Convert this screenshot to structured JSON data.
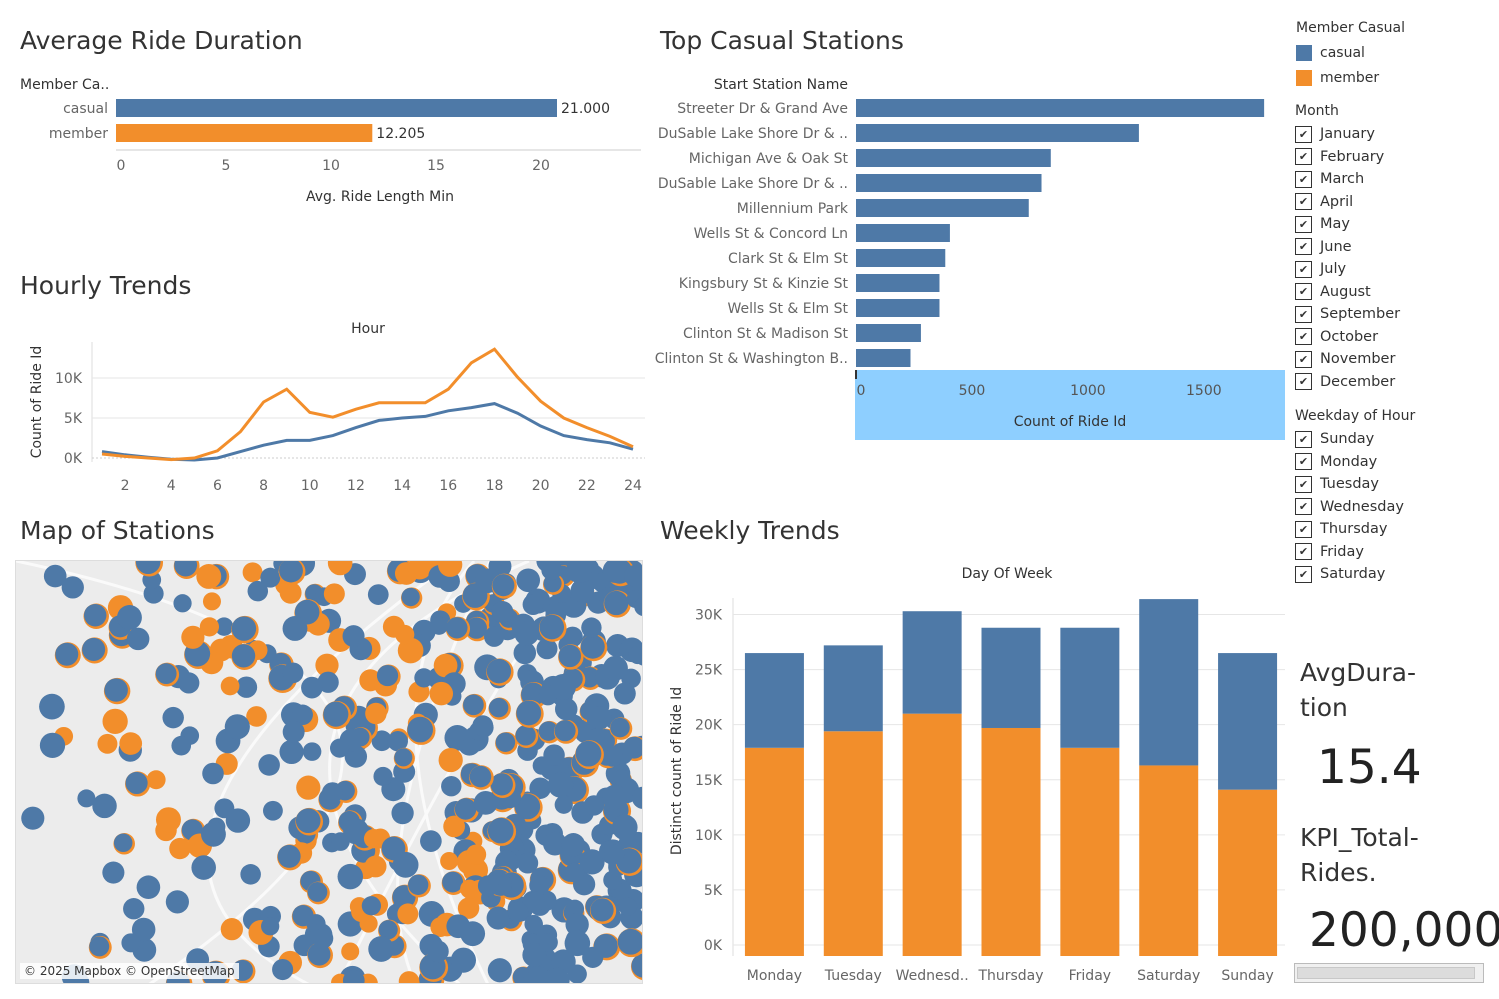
{
  "colors": {
    "casual": "#4e79a7",
    "member": "#f28e2b",
    "highlight": "#8ecfff",
    "grid": "#e6e6e6"
  },
  "legend": {
    "title": "Member Casual",
    "items": [
      {
        "label": "casual",
        "color": "#4e79a7"
      },
      {
        "label": "member",
        "color": "#f28e2b"
      }
    ]
  },
  "month_filter": {
    "title": "Month",
    "items": [
      "January",
      "February",
      "March",
      "April",
      "May",
      "June",
      "July",
      "August",
      "September",
      "October",
      "November",
      "December"
    ]
  },
  "weekday_filter": {
    "title": "Weekday of Hour",
    "items": [
      "Sunday",
      "Monday",
      "Tuesday",
      "Wednesday",
      "Thursday",
      "Friday",
      "Saturday"
    ]
  },
  "check_glyph": "✔",
  "kpi": {
    "avg_label_1": "AvgDura-",
    "avg_label_2": "tion",
    "avg_value": "15.4",
    "total_label_1": "KPI_Total-",
    "total_label_2": "Rides.",
    "total_value": "200,000"
  },
  "map": {
    "title": "Map of Stations",
    "credit": "© 2025 Mapbox © OpenStreetMap"
  },
  "chart_data": [
    {
      "id": "avg_duration",
      "type": "bar",
      "title": "Average Ride Duration",
      "row_header": "Member Ca..",
      "categories": [
        "casual",
        "member"
      ],
      "values": [
        21.0,
        12.205
      ],
      "value_labels": [
        "21.000",
        "12.205"
      ],
      "xlabel": "Avg. Ride Length Min",
      "xlim": [
        0,
        25
      ],
      "xticks": [
        "0",
        "5",
        "10",
        "15",
        "20"
      ]
    },
    {
      "id": "top_stations",
      "type": "bar",
      "title": "Top Casual Stations",
      "row_header": "Start Station Name",
      "categories": [
        "Streeter Dr & Grand Ave",
        "DuSable Lake Shore Dr & ..",
        "Michigan Ave & Oak St",
        "DuSable Lake Shore Dr & ..",
        "Millennium Park",
        "Wells St & Concord Ln",
        "Clark St & Elm St",
        "Kingsbury St & Kinzie St",
        "Wells St & Elm St",
        "Clinton St & Madison St",
        "Clinton St & Washington B.."
      ],
      "values": [
        1760,
        1220,
        840,
        800,
        745,
        405,
        385,
        360,
        360,
        280,
        235
      ],
      "xlabel": "Count of Ride Id",
      "xlim": [
        0,
        1850
      ],
      "xticks": [
        "0",
        "500",
        "1000",
        "1500"
      ]
    },
    {
      "id": "hourly",
      "type": "line",
      "title": "Hourly Trends",
      "xlabel": "Hour",
      "ylabel": "Count of Ride Id",
      "x": [
        1,
        2,
        3,
        4,
        5,
        6,
        7,
        8,
        9,
        10,
        11,
        12,
        13,
        14,
        15,
        16,
        17,
        18,
        19,
        20,
        21,
        22,
        23,
        24
      ],
      "series": [
        {
          "name": "casual",
          "values": [
            800,
            400,
            100,
            -150,
            -250,
            0,
            800,
            1600,
            2200,
            2200,
            2800,
            3800,
            4700,
            5000,
            5200,
            5900,
            6300,
            6800,
            5600,
            4000,
            2800,
            2300,
            1900,
            1100
          ]
        },
        {
          "name": "member",
          "values": [
            500,
            200,
            0,
            -200,
            0,
            900,
            3300,
            7000,
            8600,
            5700,
            5100,
            6100,
            6900,
            6900,
            6900,
            8600,
            11900,
            13600,
            10100,
            7100,
            5000,
            3800,
            2700,
            1400
          ]
        }
      ],
      "ylim": [
        -500,
        14500
      ],
      "yticks": [
        "0K",
        "5K",
        "10K"
      ],
      "xticks": [
        "2",
        "4",
        "6",
        "8",
        "10",
        "12",
        "14",
        "16",
        "18",
        "20",
        "22",
        "24"
      ]
    },
    {
      "id": "weekly",
      "type": "bar",
      "title": "Weekly Trends",
      "xlabel": "Day Of Week",
      "ylabel": "Distinct count of Ride Id",
      "categories": [
        "Monday",
        "Tuesday",
        "Wednesd..",
        "Thursday",
        "Friday",
        "Saturday",
        "Sunday"
      ],
      "series": [
        {
          "name": "member",
          "values": [
            17900,
            19400,
            21000,
            19700,
            17900,
            16300,
            14100
          ]
        },
        {
          "name": "casual",
          "values": [
            8600,
            7800,
            9300,
            9100,
            10900,
            15100,
            12400
          ]
        }
      ],
      "ylim": [
        -1000,
        31500
      ],
      "yticks": [
        "0K",
        "5K",
        "10K",
        "15K",
        "20K",
        "25K",
        "30K"
      ]
    }
  ]
}
